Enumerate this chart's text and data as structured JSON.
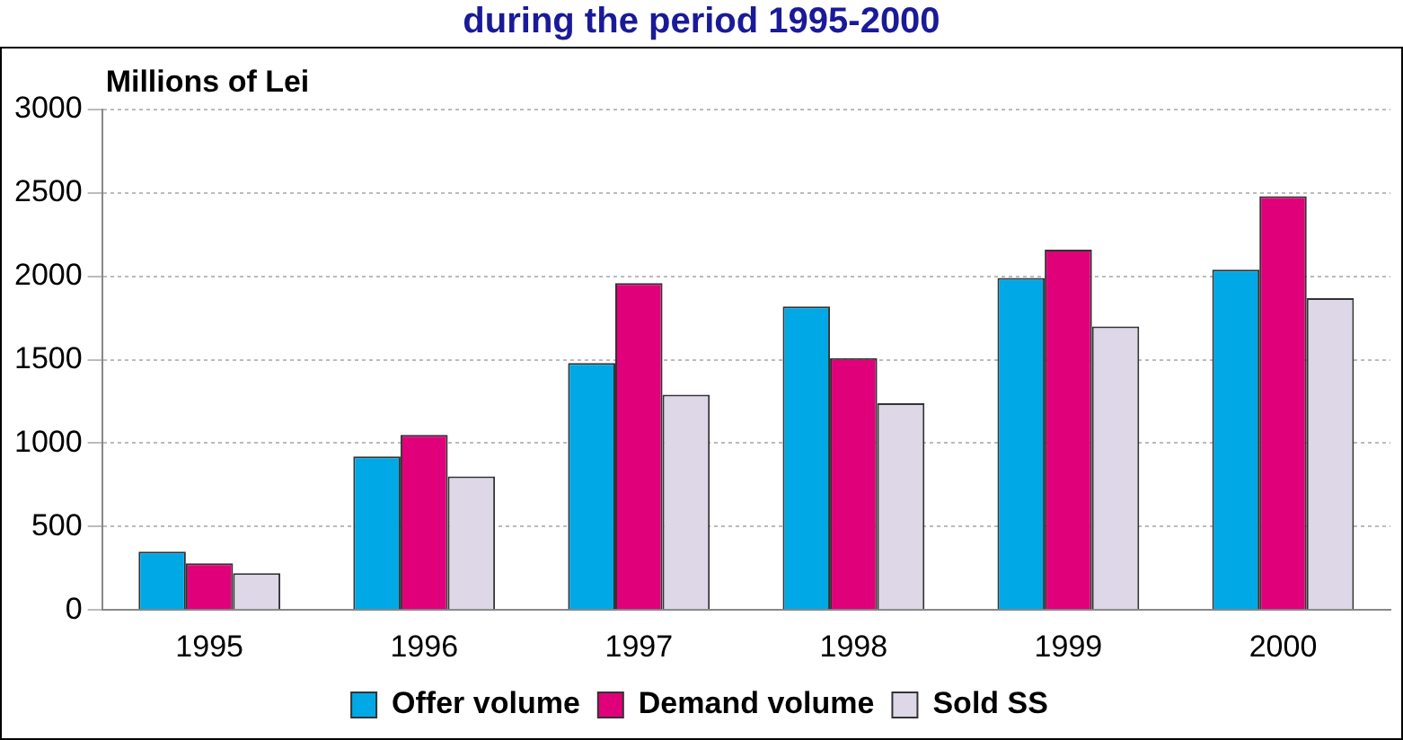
{
  "chart_data": {
    "type": "bar",
    "title": "during the period 1995-2000",
    "ylabel": "Millions of Lei",
    "categories": [
      "1995",
      "1996",
      "1997",
      "1998",
      "1999",
      "2000"
    ],
    "series": [
      {
        "name": "Offer volume",
        "color": "#00a8e6",
        "values": [
          350,
          920,
          1480,
          1820,
          1990,
          2040
        ]
      },
      {
        "name": "Demand volume",
        "color": "#e0007a",
        "values": [
          280,
          1050,
          1960,
          1510,
          2160,
          2480
        ]
      },
      {
        "name": "Sold SS",
        "color": "#ddd7e8",
        "values": [
          220,
          800,
          1290,
          1240,
          1700,
          1870
        ]
      }
    ],
    "ylim": [
      0,
      3000
    ],
    "yticks": [
      0,
      500,
      1000,
      1500,
      2000,
      2500,
      3000
    ],
    "grid": "y",
    "legend": "bottom"
  }
}
